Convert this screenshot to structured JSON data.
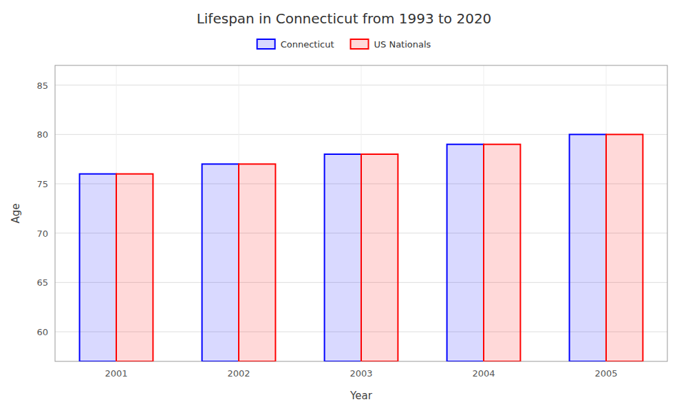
{
  "chart_data": {
    "type": "bar",
    "title": "Lifespan in Connecticut from 1993 to 2020",
    "x_label": "Year",
    "y_label": "Age",
    "categories": [
      "2001",
      "2002",
      "2003",
      "2004",
      "2005"
    ],
    "series": [
      {
        "name": "Connecticut",
        "color": "#0000ff",
        "values": [
          76,
          77,
          78,
          79,
          80
        ]
      },
      {
        "name": "US Nationals",
        "color": "#ff0000",
        "values": [
          76,
          77,
          78,
          79,
          80
        ]
      }
    ],
    "ylim": [
      57,
      87
    ],
    "yticks": [
      60,
      65,
      70,
      75,
      80,
      85
    ],
    "grid": true,
    "legend": "top"
  }
}
